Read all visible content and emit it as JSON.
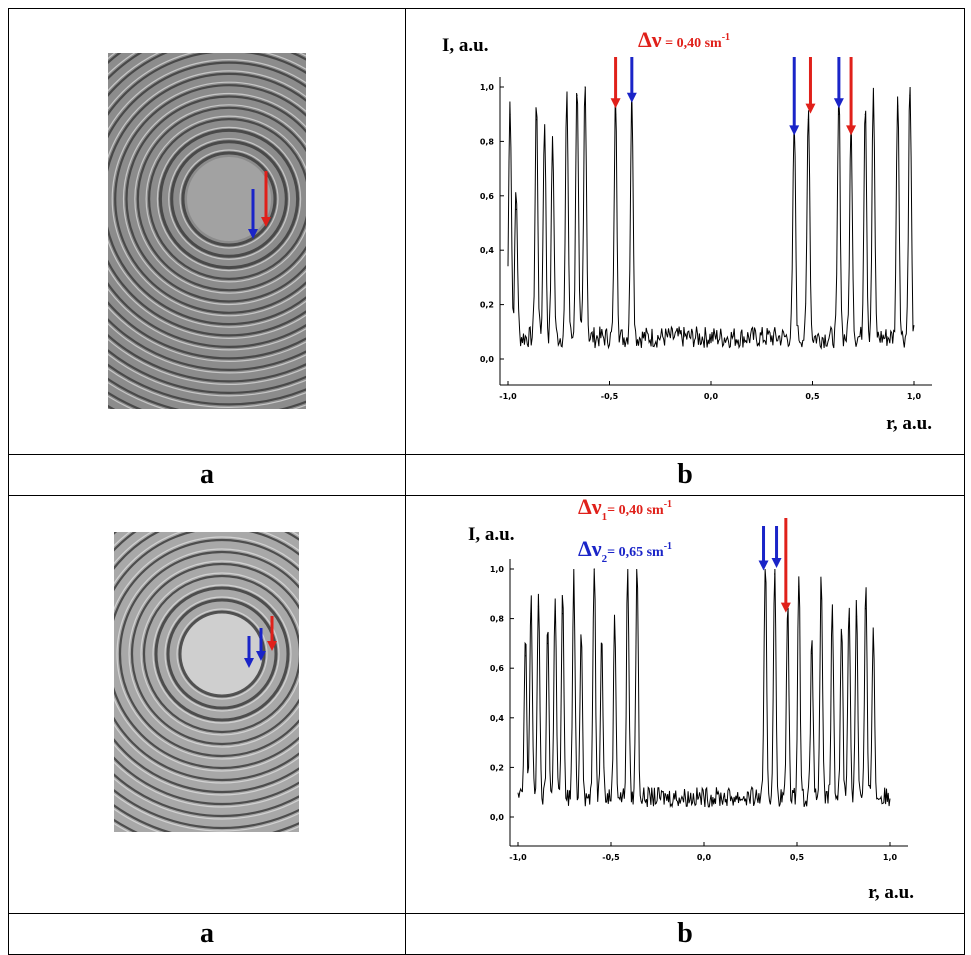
{
  "rows": [
    {
      "left_caption": "a",
      "right_caption": "b",
      "plot": {
        "y_title": "I, a.u.",
        "x_title": "r, a.u.",
        "x_ticks": [
          "-1,0",
          "-0,5",
          "0,0",
          "0,5",
          "1,0"
        ],
        "y_ticks": [
          "0,0",
          "0,2",
          "0,4",
          "0,6",
          "0,8",
          "1,0"
        ],
        "annotation_red": {
          "delta": "Δν",
          "text": " = 0,40 sm",
          "sup": "-1"
        }
      }
    },
    {
      "left_caption": "a",
      "right_caption": "b",
      "plot": {
        "y_title": "I, a.u.",
        "x_title": "r, a.u.",
        "x_ticks": [
          "-1,0",
          "-0,5",
          "0,0",
          "0,5",
          "1,0"
        ],
        "y_ticks": [
          "0,0",
          "0,2",
          "0,4",
          "0,6",
          "0,8",
          "1,0"
        ],
        "annotation_red": {
          "delta": "Δν",
          "sub": "1",
          "text": "= 0,40 sm",
          "sup": "-1"
        },
        "annotation_blue": {
          "delta": "Δν",
          "sub": "2",
          "text": "= 0,65 sm",
          "sup": "-1"
        }
      }
    }
  ],
  "colors": {
    "red_arrow": "#e0201a",
    "blue_arrow": "#1a24c8"
  },
  "chart_data": [
    {
      "type": "line",
      "xlabel": "r, a.u.",
      "ylabel": "I, a.u.",
      "xlim": [
        -1.0,
        1.0
      ],
      "ylim": [
        0.0,
        1.0
      ],
      "peaks": [
        [
          -0.99,
          0.9
        ],
        [
          -0.96,
          0.55
        ],
        [
          -0.86,
          0.88
        ],
        [
          -0.82,
          0.82
        ],
        [
          -0.78,
          0.75
        ],
        [
          -0.71,
          0.92
        ],
        [
          -0.66,
          0.97
        ],
        [
          -0.62,
          1.0
        ],
        [
          -0.47,
          0.9
        ],
        [
          -0.39,
          0.92
        ],
        [
          0.41,
          0.8
        ],
        [
          0.48,
          0.88
        ],
        [
          0.63,
          0.9
        ],
        [
          0.69,
          0.8
        ],
        [
          0.76,
          0.9
        ],
        [
          0.8,
          0.92
        ],
        [
          0.92,
          0.93
        ],
        [
          0.98,
          0.97
        ]
      ],
      "arrows_red_x": [
        -0.47,
        0.49,
        0.69
      ],
      "arrows_blue_x": [
        -0.39,
        0.41,
        0.63
      ]
    },
    {
      "type": "line",
      "xlabel": "r, a.u.",
      "ylabel": "I, a.u.",
      "xlim": [
        -1.0,
        1.0
      ],
      "ylim": [
        0.0,
        1.0
      ],
      "peaks": [
        [
          -0.96,
          0.65
        ],
        [
          -0.93,
          0.82
        ],
        [
          -0.89,
          0.85
        ],
        [
          -0.84,
          0.7
        ],
        [
          -0.8,
          0.83
        ],
        [
          -0.76,
          0.82
        ],
        [
          -0.7,
          0.9
        ],
        [
          -0.66,
          0.7
        ],
        [
          -0.59,
          1.0
        ],
        [
          -0.55,
          0.7
        ],
        [
          -0.48,
          0.75
        ],
        [
          -0.41,
          0.94
        ],
        [
          -0.36,
          0.96
        ],
        [
          0.33,
          0.97
        ],
        [
          0.38,
          0.98
        ],
        [
          0.45,
          0.8
        ],
        [
          0.51,
          0.93
        ],
        [
          0.58,
          0.66
        ],
        [
          0.63,
          0.88
        ],
        [
          0.69,
          0.78
        ],
        [
          0.74,
          0.73
        ],
        [
          0.78,
          0.8
        ],
        [
          0.82,
          0.81
        ],
        [
          0.87,
          0.84
        ],
        [
          0.91,
          0.71
        ]
      ],
      "arrows_red_x": [
        0.44
      ],
      "arrows_blue_x": [
        0.32,
        0.39
      ]
    }
  ]
}
